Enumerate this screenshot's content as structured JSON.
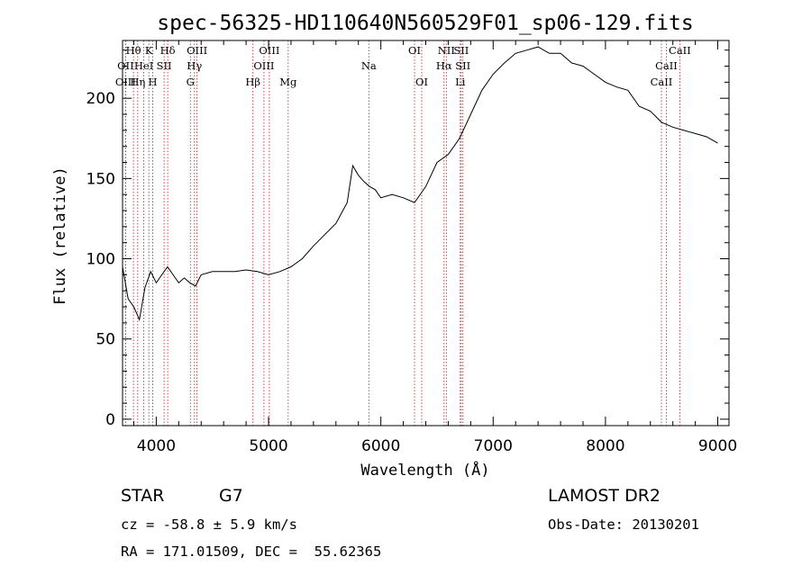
{
  "chart_data": {
    "type": "line",
    "title": "spec-56325-HD110640N560529F01_sp06-129.fits",
    "xlabel": "Wavelength (Å)",
    "ylabel": "Flux (relative)",
    "xlim": [
      3700,
      9100
    ],
    "ylim": [
      -4,
      236
    ],
    "x_ticks": [
      4000,
      5000,
      6000,
      7000,
      8000,
      9000
    ],
    "y_ticks": [
      0,
      50,
      100,
      150,
      200
    ],
    "grid": false,
    "series": [
      {
        "x": [
          3700,
          3750,
          3800,
          3850,
          3900,
          3950,
          4000,
          4050,
          4100,
          4150,
          4200,
          4250,
          4300,
          4350,
          4400,
          4500,
          4600,
          4700,
          4800,
          4900,
          5000,
          5100,
          5200,
          5300,
          5400,
          5500,
          5600,
          5700,
          5750,
          5800,
          5850,
          5900,
          5950,
          6000,
          6100,
          6200,
          6300,
          6400,
          6500,
          6600,
          6700,
          6800,
          6900,
          7000,
          7100,
          7200,
          7300,
          7400,
          7500,
          7600,
          7700,
          7800,
          7900,
          8000,
          8100,
          8200,
          8300,
          8400,
          8500,
          8600,
          8700,
          8800,
          8900,
          9000
        ],
        "y": [
          95,
          75,
          70,
          62,
          82,
          92,
          85,
          90,
          95,
          90,
          85,
          88,
          85,
          83,
          90,
          92,
          92,
          92,
          93,
          92,
          90,
          92,
          95,
          100,
          108,
          115,
          122,
          135,
          158,
          152,
          148,
          145,
          143,
          138,
          140,
          138,
          135,
          145,
          160,
          165,
          175,
          190,
          205,
          215,
          222,
          228,
          230,
          232,
          228,
          228,
          222,
          220,
          215,
          210,
          207,
          205,
          195,
          192,
          185,
          182,
          180,
          178,
          176,
          172
        ]
      }
    ],
    "spectral_lines": [
      {
        "label": "Hθ",
        "x": 3797,
        "row": 0
      },
      {
        "label": "OII",
        "x": 3727,
        "row": 1
      },
      {
        "label": "OIII",
        "x": 3727,
        "row": 2
      },
      {
        "label": "HeI",
        "x": 3889,
        "row": 1
      },
      {
        "label": "Hη",
        "x": 3835,
        "row": 2
      },
      {
        "label": "K",
        "x": 3934,
        "row": 0
      },
      {
        "label": "SII",
        "x": 4070,
        "row": 1
      },
      {
        "label": "H",
        "x": 3969,
        "row": 2
      },
      {
        "label": "Hδ",
        "x": 4102,
        "row": 0
      },
      {
        "label": "OIII",
        "x": 4363,
        "row": 0
      },
      {
        "label": "Hγ",
        "x": 4340,
        "row": 1
      },
      {
        "label": "G",
        "x": 4304,
        "row": 2
      },
      {
        "label": "OIII",
        "x": 5007,
        "row": 0
      },
      {
        "label": "OIII",
        "x": 4959,
        "row": 1
      },
      {
        "label": "Hβ",
        "x": 4861,
        "row": 2
      },
      {
        "label": "Mg",
        "x": 5175,
        "row": 2
      },
      {
        "label": "Na",
        "x": 5893,
        "row": 1
      },
      {
        "label": "OI",
        "x": 6300,
        "row": 0
      },
      {
        "label": "OI",
        "x": 6364,
        "row": 2
      },
      {
        "label": "NII",
        "x": 6583,
        "row": 0
      },
      {
        "label": "Hα",
        "x": 6563,
        "row": 1
      },
      {
        "label": "SII",
        "x": 6716,
        "row": 0
      },
      {
        "label": "SII",
        "x": 6731,
        "row": 1
      },
      {
        "label": "Li",
        "x": 6707,
        "row": 2
      },
      {
        "label": "CaII",
        "x": 8662,
        "row": 0
      },
      {
        "label": "CaII",
        "x": 8542,
        "row": 1
      },
      {
        "label": "CaII",
        "x": 8498,
        "row": 2
      }
    ]
  },
  "info": {
    "object_class": "STAR",
    "subclass": "G7",
    "survey": "LAMOST DR2",
    "cz": "cz = -58.8 ± 5.9 km/s",
    "obs_date": "Obs-Date: 20130201",
    "coords": "RA = 171.01509, DEC =  55.62365"
  }
}
